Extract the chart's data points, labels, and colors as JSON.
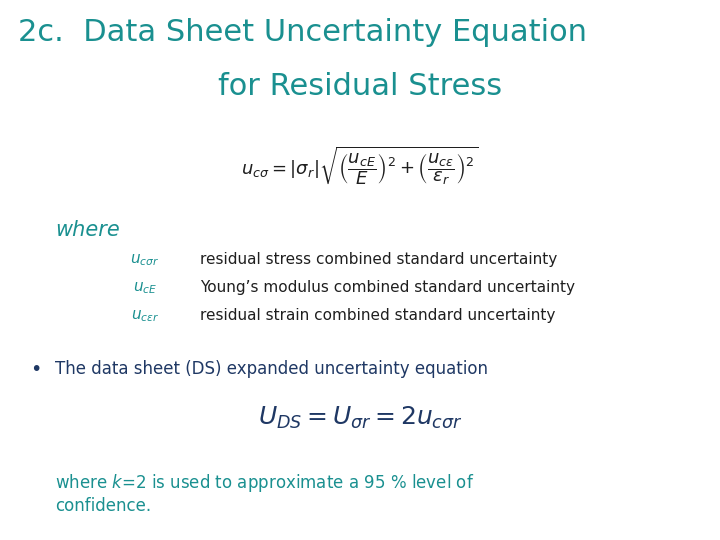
{
  "title_line1": "2c.  Data Sheet Uncertainty Equation",
  "title_line2": "for Residual Stress",
  "title_color": "#1a9090",
  "title_fontsize": 22,
  "bg_color": "#ffffff",
  "eq1_latex": "$u_{c\\sigma} = |\\sigma_r|\\sqrt{\\left(\\dfrac{u_{cE}}{E}\\right)^2 + \\left(\\dfrac{u_{c\\varepsilon}}{\\varepsilon_r}\\right)^2}$",
  "where_text": "where",
  "where_color": "#1a9090",
  "where_fontsize": 15,
  "var1_latex": "$u_{c\\sigma r}$",
  "var1_desc": "residual stress combined standard uncertainty",
  "var2_latex": "$u_{cE}$",
  "var2_desc": "Young’s modulus combined standard uncertainty",
  "var3_latex": "$u_{c\\varepsilon r}$",
  "var3_desc": "residual strain combined standard uncertainty",
  "var_color": "#1a9090",
  "bullet_text": "The data sheet (DS) expanded uncertainty equation",
  "bullet_color": "#1f3864",
  "eq2_latex": "$U_{DS} = U_{\\sigma r} = 2u_{c\\sigma r}$",
  "eq2_color": "#1f3864",
  "footer_line1": "where $k$=2 is used to approximate a 95 % level of",
  "footer_line2": "confidence.",
  "footer_color": "#1a9090",
  "text_color": "#1f1f1f",
  "eq_fontsize": 13,
  "body_fontsize": 12,
  "eq2_fontsize": 18,
  "var_fontsize": 11,
  "desc_fontsize": 11
}
